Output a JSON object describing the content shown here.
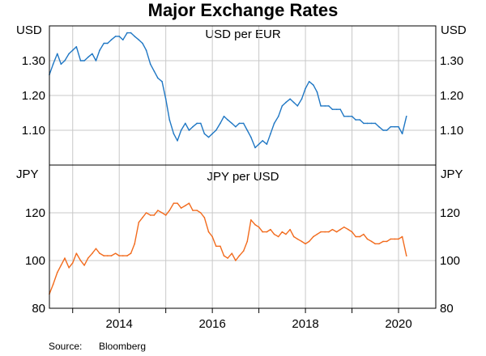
{
  "chart_data": {
    "type": "line",
    "title": "Major Exchange Rates",
    "source_label": "Source:",
    "source": "Bloomberg",
    "colors": {
      "usd_per_eur": "#1f77c4",
      "jpy_per_usd": "#f26b1d",
      "axis": "#000000",
      "grid": "#c8c8c8"
    },
    "x_axis": {
      "range": [
        2012.5,
        2020.8
      ],
      "ticks": [
        2013,
        2014,
        2015,
        2016,
        2017,
        2018,
        2019,
        2020
      ],
      "tick_labels": [
        "",
        "2014",
        "",
        "2016",
        "",
        "2018",
        "",
        "2020"
      ]
    },
    "panels": [
      {
        "id": "usd_per_eur",
        "title": "USD per EUR",
        "unit_left": "USD",
        "unit_right": "USD",
        "ylim": [
          1.0,
          1.4
        ],
        "yticks": [
          1.1,
          1.2,
          1.3
        ],
        "ytick_labels": [
          "1.10",
          "1.20",
          "1.30"
        ],
        "series": {
          "name": "USD per EUR",
          "x": [
            2012.5,
            2012.58,
            2012.67,
            2012.75,
            2012.83,
            2012.92,
            2013.0,
            2013.08,
            2013.17,
            2013.25,
            2013.33,
            2013.42,
            2013.5,
            2013.58,
            2013.67,
            2013.75,
            2013.83,
            2013.92,
            2014.0,
            2014.08,
            2014.17,
            2014.25,
            2014.33,
            2014.42,
            2014.5,
            2014.58,
            2014.67,
            2014.75,
            2014.83,
            2014.92,
            2015.0,
            2015.08,
            2015.17,
            2015.25,
            2015.33,
            2015.42,
            2015.5,
            2015.58,
            2015.67,
            2015.75,
            2015.83,
            2015.92,
            2016.0,
            2016.08,
            2016.17,
            2016.25,
            2016.33,
            2016.42,
            2016.5,
            2016.58,
            2016.67,
            2016.75,
            2016.83,
            2016.92,
            2017.0,
            2017.08,
            2017.17,
            2017.25,
            2017.33,
            2017.42,
            2017.5,
            2017.58,
            2017.67,
            2017.75,
            2017.83,
            2017.92,
            2018.0,
            2018.08,
            2018.17,
            2018.25,
            2018.33,
            2018.42,
            2018.5,
            2018.58,
            2018.67,
            2018.75,
            2018.83,
            2018.92,
            2019.0,
            2019.08,
            2019.17,
            2019.25,
            2019.33,
            2019.42,
            2019.5,
            2019.58,
            2019.67,
            2019.75,
            2019.83,
            2019.92,
            2020.0,
            2020.08,
            2020.17
          ],
          "values": [
            1.26,
            1.29,
            1.32,
            1.29,
            1.3,
            1.32,
            1.33,
            1.34,
            1.3,
            1.3,
            1.31,
            1.32,
            1.3,
            1.33,
            1.35,
            1.35,
            1.36,
            1.37,
            1.37,
            1.36,
            1.38,
            1.38,
            1.37,
            1.36,
            1.35,
            1.33,
            1.29,
            1.27,
            1.25,
            1.24,
            1.19,
            1.13,
            1.09,
            1.07,
            1.1,
            1.12,
            1.1,
            1.11,
            1.12,
            1.12,
            1.09,
            1.08,
            1.09,
            1.1,
            1.12,
            1.14,
            1.13,
            1.12,
            1.11,
            1.12,
            1.12,
            1.1,
            1.08,
            1.05,
            1.06,
            1.07,
            1.06,
            1.09,
            1.12,
            1.14,
            1.17,
            1.18,
            1.19,
            1.18,
            1.17,
            1.19,
            1.22,
            1.24,
            1.23,
            1.21,
            1.17,
            1.17,
            1.17,
            1.16,
            1.16,
            1.16,
            1.14,
            1.14,
            1.14,
            1.13,
            1.13,
            1.12,
            1.12,
            1.12,
            1.12,
            1.11,
            1.1,
            1.1,
            1.11,
            1.11,
            1.11,
            1.09,
            1.14
          ]
        }
      },
      {
        "id": "jpy_per_usd",
        "title": "JPY per USD",
        "unit_left": "JPY",
        "unit_right": "JPY",
        "ylim": [
          80,
          140
        ],
        "yticks": [
          80,
          100,
          120
        ],
        "ytick_labels": [
          "80",
          "100",
          "120"
        ],
        "series": {
          "name": "JPY per USD",
          "x": [
            2012.5,
            2012.58,
            2012.67,
            2012.75,
            2012.83,
            2012.92,
            2013.0,
            2013.08,
            2013.17,
            2013.25,
            2013.33,
            2013.42,
            2013.5,
            2013.58,
            2013.67,
            2013.75,
            2013.83,
            2013.92,
            2014.0,
            2014.08,
            2014.17,
            2014.25,
            2014.33,
            2014.42,
            2014.5,
            2014.58,
            2014.67,
            2014.75,
            2014.83,
            2014.92,
            2015.0,
            2015.08,
            2015.17,
            2015.25,
            2015.33,
            2015.42,
            2015.5,
            2015.58,
            2015.67,
            2015.75,
            2015.83,
            2015.92,
            2016.0,
            2016.08,
            2016.17,
            2016.25,
            2016.33,
            2016.42,
            2016.5,
            2016.58,
            2016.67,
            2016.75,
            2016.83,
            2016.92,
            2017.0,
            2017.08,
            2017.17,
            2017.25,
            2017.33,
            2017.42,
            2017.5,
            2017.58,
            2017.67,
            2017.75,
            2017.83,
            2017.92,
            2018.0,
            2018.08,
            2018.17,
            2018.25,
            2018.33,
            2018.42,
            2018.5,
            2018.58,
            2018.67,
            2018.75,
            2018.83,
            2018.92,
            2019.0,
            2019.08,
            2019.17,
            2019.25,
            2019.33,
            2019.42,
            2019.5,
            2019.58,
            2019.67,
            2019.75,
            2019.83,
            2019.92,
            2020.0,
            2020.08,
            2020.17
          ],
          "values": [
            86,
            90,
            95,
            98,
            101,
            97,
            99,
            103,
            100,
            98,
            101,
            103,
            105,
            103,
            102,
            102,
            102,
            103,
            102,
            102,
            102,
            103,
            107,
            116,
            118,
            120,
            119,
            119,
            121,
            120,
            119,
            121,
            124,
            124,
            122,
            123,
            124,
            121,
            121,
            120,
            118,
            112,
            110,
            106,
            106,
            102,
            101,
            103,
            100,
            102,
            104,
            108,
            117,
            115,
            114,
            112,
            112,
            113,
            111,
            110,
            112,
            111,
            113,
            110,
            109,
            108,
            107,
            108,
            110,
            111,
            112,
            112,
            112,
            113,
            112,
            113,
            114,
            113,
            112,
            110,
            110,
            111,
            109,
            108,
            107,
            107,
            108,
            108,
            109,
            109,
            109,
            110,
            102
          ]
        }
      }
    ]
  }
}
